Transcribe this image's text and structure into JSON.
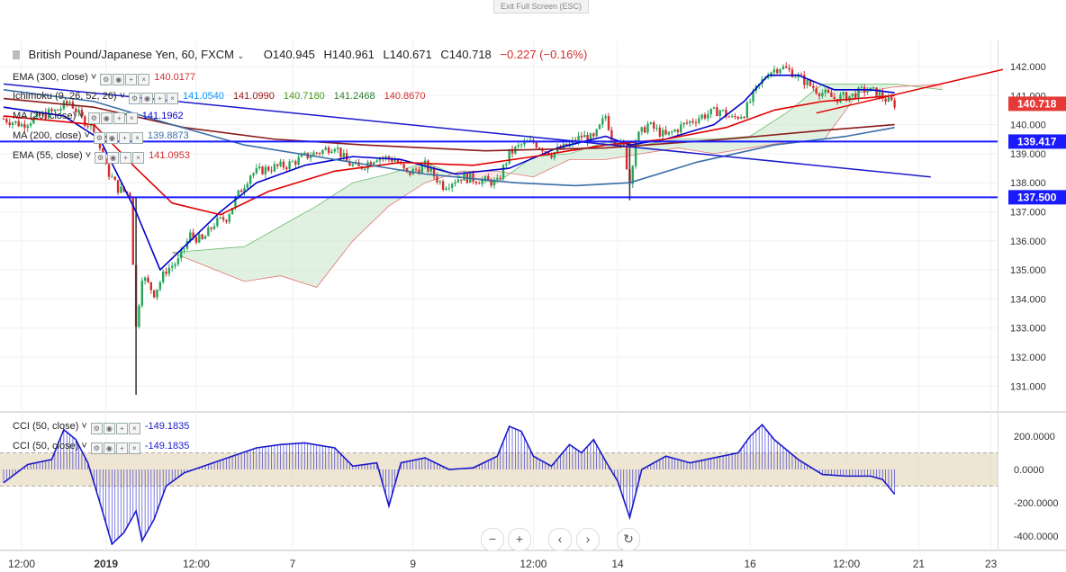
{
  "exit_fullscreen_label": "Exit Full Screen (ESC)",
  "header": {
    "symbol": "British Pound/Japanese Yen, 60, FXCM",
    "dropdown_icon": "chevron-down-icon",
    "open": "O140.945",
    "high": "H140.961",
    "low": "L140.671",
    "close": "C140.718",
    "change": "−0.227 (−0.16%)",
    "change_color": "#d32f2f"
  },
  "indicators": [
    {
      "name": "EMA (300, close)",
      "values": [
        "140.0177"
      ],
      "colors": [
        "#d32f2f"
      ]
    },
    {
      "name": "Ichimoku (9, 26, 52, 26)",
      "values": [
        "141.0540",
        "141.0990",
        "140.7180",
        "141.2468",
        "140.8670"
      ],
      "colors": [
        "#0496ff",
        "#991515",
        "#459915",
        "#2e7d32",
        "#d32f2f"
      ]
    },
    {
      "name": "MA (20, close)",
      "values": [
        "141.1962"
      ],
      "colors": [
        "#0000cc"
      ]
    },
    {
      "name": "MA (200, close)",
      "values": [
        "139.8873"
      ],
      "colors": [
        "#3b6ea8"
      ]
    },
    {
      "name": "EMA (55, close)",
      "values": [
        "141.0953"
      ],
      "colors": [
        "#d32f2f"
      ]
    }
  ],
  "cci_indicators": [
    {
      "name": "CCI (50, close)",
      "value": "-149.1835"
    },
    {
      "name": "CCI (50, close)",
      "value": "-149.1835"
    }
  ],
  "price_labels": [
    {
      "text": "140.718",
      "color": "#e53935"
    },
    {
      "text": "139.417",
      "color": "#1a1aff"
    },
    {
      "text": "137.500",
      "color": "#1a1aff"
    }
  ],
  "nav": {
    "zoom_out_icon": "minus-icon",
    "zoom_in_icon": "plus-icon",
    "scroll_left_icon": "chevron-left-icon",
    "scroll_right_icon": "chevron-right-icon",
    "reset_icon": "reset-icon"
  },
  "colors": {
    "bull": "#26a65b",
    "bear": "#d32f2f",
    "cci": "#1a1acc",
    "cci_band": "#e8dcc4"
  },
  "chart_data": [
    {
      "type": "candlestick",
      "title": "British Pound/Japanese Yen, 60, FXCM",
      "y_ticks": [
        "142.000",
        "141.000",
        "140.000",
        "139.000",
        "138.000",
        "137.000",
        "136.000",
        "135.000",
        "134.000",
        "133.000",
        "132.000",
        "131.000"
      ],
      "ylim": [
        130.5,
        142.3
      ],
      "x_ticks": [
        "12:00",
        "2019",
        "12:00",
        "7",
        "9",
        "12:00",
        "14",
        "16",
        "12:00",
        "21",
        "23"
      ],
      "horizontal_lines": [
        139.417,
        137.5
      ],
      "last_price": 140.718,
      "close_path": [
        [
          0,
          140.2
        ],
        [
          3,
          140.0
        ],
        [
          6,
          140.3
        ],
        [
          9,
          140.5
        ],
        [
          11,
          140.8
        ],
        [
          13,
          140.2
        ],
        [
          15,
          139.9
        ],
        [
          17,
          138.5
        ],
        [
          19,
          137.8
        ],
        [
          21,
          137.6
        ],
        [
          22,
          133.0
        ],
        [
          23,
          134.8
        ],
        [
          25,
          134.2
        ],
        [
          27,
          135.0
        ],
        [
          29,
          135.3
        ],
        [
          31,
          136.2
        ],
        [
          33,
          136.0
        ],
        [
          35,
          136.6
        ],
        [
          37,
          136.8
        ],
        [
          39,
          137.6
        ],
        [
          41,
          138.3
        ],
        [
          44,
          138.5
        ],
        [
          47,
          138.6
        ],
        [
          50,
          138.9
        ],
        [
          53,
          139.1
        ],
        [
          55,
          139.3
        ],
        [
          57,
          138.7
        ],
        [
          59,
          138.5
        ],
        [
          62,
          138.9
        ],
        [
          65,
          138.8
        ],
        [
          67,
          138.3
        ],
        [
          70,
          138.6
        ],
        [
          73,
          137.9
        ],
        [
          76,
          138.2
        ],
        [
          79,
          138.1
        ],
        [
          82,
          138.0
        ],
        [
          84,
          139.0
        ],
        [
          86,
          139.3
        ],
        [
          88,
          139.4
        ],
        [
          91,
          139.0
        ],
        [
          94,
          139.3
        ],
        [
          96,
          139.6
        ],
        [
          98,
          139.5
        ],
        [
          100,
          140.3
        ],
        [
          101,
          139.6
        ],
        [
          103,
          139.2
        ],
        [
          104,
          138.0
        ],
        [
          105,
          139.5
        ],
        [
          107,
          140.0
        ],
        [
          110,
          139.6
        ],
        [
          113,
          140.0
        ],
        [
          116,
          140.3
        ],
        [
          119,
          140.5
        ],
        [
          121,
          140.2
        ],
        [
          123,
          140.4
        ],
        [
          125,
          141.2
        ],
        [
          127,
          141.8
        ],
        [
          129,
          142.0
        ],
        [
          131,
          141.8
        ],
        [
          133,
          141.5
        ],
        [
          135,
          141.2
        ],
        [
          138,
          140.9
        ],
        [
          141,
          141.0
        ],
        [
          143,
          141.2
        ],
        [
          145,
          141.1
        ],
        [
          147,
          140.8
        ],
        [
          148,
          140.718
        ]
      ],
      "wicks": [
        {
          "x": 22,
          "low": 130.7,
          "high": 137.5
        },
        {
          "x": 104,
          "low": 137.4,
          "high": 139.4
        }
      ],
      "series": [
        {
          "name": "MA (20, close)",
          "color": "#0000cc",
          "points": [
            [
              0,
              140.6
            ],
            [
              10,
              140.3
            ],
            [
              16,
              139.5
            ],
            [
              22,
              137.0
            ],
            [
              26,
              135.0
            ],
            [
              30,
              135.8
            ],
            [
              36,
              137.0
            ],
            [
              42,
              138.0
            ],
            [
              50,
              138.6
            ],
            [
              58,
              138.9
            ],
            [
              66,
              138.8
            ],
            [
              75,
              138.3
            ],
            [
              84,
              138.5
            ],
            [
              92,
              139.2
            ],
            [
              100,
              139.6
            ],
            [
              104,
              139.3
            ],
            [
              110,
              139.5
            ],
            [
              118,
              140.0
            ],
            [
              123,
              140.8
            ],
            [
              127,
              141.7
            ],
            [
              132,
              141.7
            ],
            [
              138,
              141.2
            ],
            [
              144,
              141.2
            ],
            [
              148,
              141.1
            ]
          ]
        },
        {
          "name": "EMA (55, close)",
          "color": "#e00000",
          "points": [
            [
              0,
              140.3
            ],
            [
              15,
              140.0
            ],
            [
              22,
              138.5
            ],
            [
              28,
              137.3
            ],
            [
              36,
              136.9
            ],
            [
              44,
              137.7
            ],
            [
              55,
              138.4
            ],
            [
              66,
              138.7
            ],
            [
              78,
              138.6
            ],
            [
              88,
              138.9
            ],
            [
              100,
              139.3
            ],
            [
              110,
              139.5
            ],
            [
              120,
              139.9
            ],
            [
              128,
              140.5
            ],
            [
              136,
              140.8
            ],
            [
              148,
              141.0
            ]
          ]
        },
        {
          "name": "EMA (300, close)",
          "color": "#8b1a1a",
          "points": [
            [
              0,
              140.9
            ],
            [
              15,
              140.6
            ],
            [
              30,
              139.9
            ],
            [
              45,
              139.5
            ],
            [
              60,
              139.3
            ],
            [
              80,
              139.1
            ],
            [
              100,
              139.2
            ],
            [
              120,
              139.5
            ],
            [
              136,
              139.8
            ],
            [
              148,
              140.0
            ]
          ]
        },
        {
          "name": "MA (200, close)",
          "color": "#3b6ea8",
          "points": [
            [
              0,
              141.2
            ],
            [
              15,
              140.8
            ],
            [
              28,
              140.0
            ],
            [
              40,
              139.3
            ],
            [
              55,
              138.8
            ],
            [
              70,
              138.3
            ],
            [
              85,
              138.0
            ],
            [
              95,
              137.9
            ],
            [
              104,
              138.0
            ],
            [
              115,
              138.7
            ],
            [
              128,
              139.3
            ],
            [
              140,
              139.6
            ],
            [
              148,
              139.9
            ]
          ]
        }
      ],
      "cloud": [
        [
          28,
          135.6,
          135.6
        ],
        [
          34,
          135.7,
          135.1
        ],
        [
          40,
          135.8,
          134.6
        ],
        [
          46,
          136.5,
          134.8
        ],
        [
          52,
          137.2,
          134.4
        ],
        [
          58,
          138.0,
          136.0
        ],
        [
          64,
          138.3,
          137.2
        ],
        [
          70,
          138.7,
          138.0
        ],
        [
          76,
          138.2,
          138.4
        ],
        [
          82,
          138.0,
          138.4
        ],
        [
          88,
          138.9,
          138.2
        ],
        [
          94,
          139.0,
          138.8
        ],
        [
          100,
          139.4,
          138.8
        ],
        [
          106,
          139.3,
          139.0
        ],
        [
          112,
          139.5,
          139.2
        ],
        [
          118,
          139.5,
          139.0
        ],
        [
          124,
          139.6,
          139.2
        ],
        [
          130,
          140.4,
          139.4
        ],
        [
          136,
          141.4,
          139.4
        ],
        [
          142,
          141.4,
          141.1
        ],
        [
          148,
          141.4,
          141.3
        ],
        [
          156,
          141.2,
          141.4
        ]
      ],
      "trendlines": [
        {
          "color": "#1a1acc",
          "from": [
            0,
            141.4
          ],
          "to": [
            154,
            138.2
          ]
        },
        {
          "color": "#e00000",
          "from": [
            135,
            140.4
          ],
          "to": [
            166,
            141.9
          ]
        }
      ]
    },
    {
      "type": "line",
      "title": "CCI (50, close)",
      "y_ticks": [
        "200.0000",
        "0.0000",
        "-200.0000",
        "-400.0000"
      ],
      "ylim": [
        -450,
        300
      ],
      "band": [
        -100,
        100
      ],
      "last_value": -149.1835,
      "points": [
        [
          0,
          -80
        ],
        [
          4,
          30
        ],
        [
          8,
          60
        ],
        [
          10,
          240
        ],
        [
          12,
          180
        ],
        [
          14,
          40
        ],
        [
          16,
          -200
        ],
        [
          18,
          -450
        ],
        [
          20,
          -380
        ],
        [
          22,
          -250
        ],
        [
          23,
          -430
        ],
        [
          25,
          -300
        ],
        [
          27,
          -100
        ],
        [
          30,
          -20
        ],
        [
          34,
          30
        ],
        [
          38,
          80
        ],
        [
          42,
          130
        ],
        [
          46,
          150
        ],
        [
          50,
          160
        ],
        [
          55,
          130
        ],
        [
          58,
          20
        ],
        [
          62,
          40
        ],
        [
          64,
          -220
        ],
        [
          66,
          40
        ],
        [
          70,
          70
        ],
        [
          74,
          0
        ],
        [
          78,
          10
        ],
        [
          82,
          80
        ],
        [
          84,
          260
        ],
        [
          86,
          230
        ],
        [
          88,
          80
        ],
        [
          91,
          20
        ],
        [
          94,
          150
        ],
        [
          96,
          100
        ],
        [
          98,
          180
        ],
        [
          100,
          50
        ],
        [
          102,
          -70
        ],
        [
          104,
          -290
        ],
        [
          106,
          0
        ],
        [
          110,
          80
        ],
        [
          114,
          40
        ],
        [
          118,
          70
        ],
        [
          122,
          100
        ],
        [
          124,
          200
        ],
        [
          126,
          270
        ],
        [
          128,
          180
        ],
        [
          132,
          60
        ],
        [
          136,
          -30
        ],
        [
          140,
          -40
        ],
        [
          144,
          -40
        ],
        [
          146,
          -60
        ],
        [
          148,
          -149
        ]
      ]
    }
  ]
}
